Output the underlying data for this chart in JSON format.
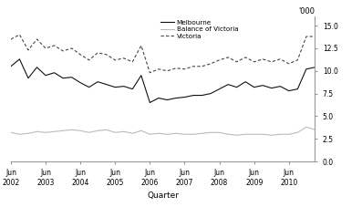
{
  "ylabel_right": "'000",
  "xlabel": "Quarter",
  "yticks": [
    0,
    2.5,
    5.0,
    7.5,
    10.0,
    12.5,
    15.0
  ],
  "ylim": [
    0,
    16
  ],
  "xtick_labels": [
    "Jun\n2002",
    "Jun\n2003",
    "Jun\n2004",
    "Jun\n2005",
    "Jun\n2006",
    "Jun\n2007",
    "Jun\n2008",
    "Jun\n2009",
    "Jun\n2010"
  ],
  "melbourne": [
    10.5,
    11.3,
    9.2,
    10.4,
    9.5,
    9.8,
    9.2,
    9.3,
    8.7,
    8.2,
    8.8,
    8.5,
    8.2,
    8.3,
    8.0,
    9.5,
    6.5,
    7.0,
    6.8,
    7.0,
    7.1,
    7.3,
    7.3,
    7.5,
    8.0,
    8.5,
    8.2,
    8.8,
    8.2,
    8.4,
    8.1,
    8.3,
    7.8,
    8.0,
    10.2,
    10.4
  ],
  "balance_of_victoria": [
    3.2,
    3.0,
    3.1,
    3.3,
    3.2,
    3.3,
    3.4,
    3.5,
    3.4,
    3.2,
    3.4,
    3.5,
    3.2,
    3.3,
    3.1,
    3.4,
    3.0,
    3.1,
    3.0,
    3.1,
    3.0,
    3.0,
    3.1,
    3.2,
    3.2,
    3.0,
    2.9,
    3.0,
    3.0,
    3.0,
    2.9,
    3.0,
    3.0,
    3.2,
    3.8,
    3.5
  ],
  "victoria": [
    13.5,
    14.0,
    12.3,
    13.5,
    12.5,
    12.8,
    12.2,
    12.5,
    11.8,
    11.2,
    12.0,
    11.8,
    11.2,
    11.4,
    11.0,
    12.8,
    9.8,
    10.2,
    10.0,
    10.3,
    10.2,
    10.5,
    10.5,
    10.8,
    11.2,
    11.5,
    11.0,
    11.5,
    11.0,
    11.3,
    11.0,
    11.3,
    10.8,
    11.2,
    13.8,
    13.8
  ],
  "melbourne_color": "#111111",
  "balance_color": "#bbbbbb",
  "victoria_color": "#444444",
  "background_color": "#ffffff",
  "legend_labels": [
    "Melbourne",
    "Balance of Victoria",
    "Victoria"
  ],
  "n_points": 36
}
